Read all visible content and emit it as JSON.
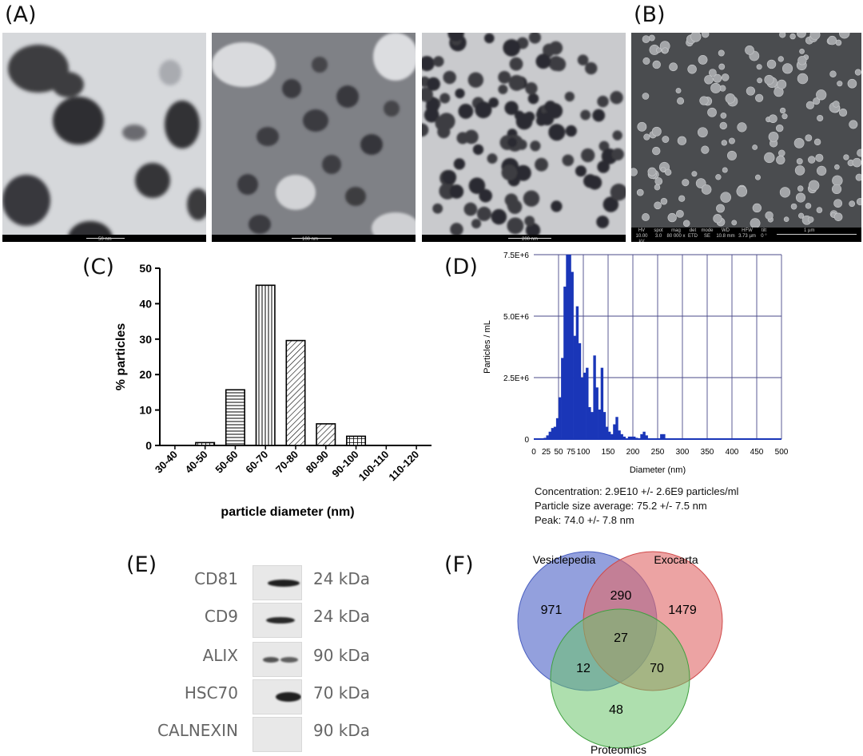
{
  "panels": {
    "A": {
      "letter": "(A)",
      "tem": [
        {
          "scale_label": "50 nm"
        },
        {
          "scale_label": "100 nm"
        },
        {
          "scale_label": "200 nm"
        }
      ]
    },
    "B": {
      "letter": "(B)",
      "sem_info": {
        "headers": [
          "HV",
          "spot",
          "mag",
          "det",
          "mode",
          "WD",
          "HFW",
          "tilt"
        ],
        "values": [
          "10.00 kV",
          "3.0",
          "80 000 x",
          "ETD",
          "SE",
          "10.8 mm",
          "3.73 µm",
          "0 °"
        ],
        "scale_label": "1 µm"
      }
    },
    "C": {
      "letter": "(C)"
    },
    "D": {
      "letter": "(D)",
      "stats": [
        "Concentration: 2.9E10 +/- 2.6E9 particles/ml",
        "Particle size average: 75.2 +/- 7.5 nm",
        "Peak: 74.0 +/- 7.8 nm"
      ]
    },
    "E": {
      "letter": "(E)",
      "blots": [
        {
          "protein": "CD81",
          "kda": "24 kDa"
        },
        {
          "protein": "CD9",
          "kda": "24 kDa"
        },
        {
          "protein": "ALIX",
          "kda": "90 kDa"
        },
        {
          "protein": "HSC70",
          "kda": "70 kDa"
        },
        {
          "protein": "CALNEXIN",
          "kda": "90 kDa"
        }
      ]
    },
    "F": {
      "letter": "(F)",
      "sets": {
        "a": "Vesiclepedia",
        "b": "Exocarta",
        "c": "Proteomics"
      },
      "colors": {
        "a": "#6a7bd0",
        "b": "#e06a6a",
        "c": "#6cc46c"
      },
      "counts": {
        "a_only": "971",
        "ab": "290",
        "b_only": "1479",
        "abc": "27",
        "ac": "12",
        "bc": "70",
        "c_only": "48"
      }
    }
  },
  "chart_data": [
    {
      "type": "bar",
      "panel": "C",
      "categories": [
        "30-40",
        "40-50",
        "50-60",
        "60-70",
        "70-80",
        "80-90",
        "90-100",
        "100-110",
        "110-120"
      ],
      "values": [
        0,
        0.8,
        15.7,
        45.2,
        29.6,
        6.1,
        2.6,
        0,
        0
      ],
      "patterns": [
        "none",
        "cross",
        "horizontal",
        "vertical",
        "diagonal",
        "diagonal",
        "cross",
        "none",
        "none"
      ],
      "xlabel": "particle diameter (nm)",
      "ylabel": "% particles",
      "ylim": [
        0,
        50
      ],
      "yticks": [
        0,
        10,
        20,
        30,
        40,
        50
      ]
    },
    {
      "type": "bar",
      "panel": "D",
      "bar_color": "#1a36b8",
      "bin_width": 5,
      "x": [
        20,
        25,
        30,
        35,
        40,
        45,
        50,
        55,
        60,
        65,
        70,
        75,
        80,
        85,
        90,
        95,
        100,
        105,
        110,
        115,
        120,
        125,
        130,
        135,
        140,
        145,
        150,
        155,
        160,
        165,
        170,
        175,
        180,
        185,
        190,
        195,
        200,
        205,
        210,
        215,
        220,
        225,
        230,
        235,
        240,
        245,
        250,
        255,
        260,
        265,
        270
      ],
      "values": [
        0.05,
        0.15,
        0.3,
        0.45,
        0.5,
        0.85,
        1.7,
        3.3,
        6.2,
        7.5,
        7.5,
        6.8,
        4.2,
        5.4,
        3.9,
        2.5,
        2.7,
        2.9,
        1.3,
        1.1,
        3.4,
        2.1,
        1.2,
        2.9,
        1.1,
        0.5,
        0.3,
        0.2,
        0.6,
        0.9,
        0.35,
        0.2,
        0.1,
        0,
        0.1,
        0.1,
        0.1,
        0.05,
        0,
        0.2,
        0.3,
        0.15,
        0,
        0,
        0,
        0,
        0,
        0.2,
        0.2,
        0,
        0
      ],
      "xlabel": "Diameter (nm)",
      "ylabel": "Particles / mL",
      "xlim": [
        0,
        500
      ],
      "ylim": [
        0,
        7500000
      ],
      "xticks": [
        0,
        25,
        50,
        75,
        100,
        150,
        200,
        250,
        300,
        350,
        400,
        450,
        500
      ],
      "ytick_labels": [
        "0",
        "2.5E+6",
        "5.0E+6",
        "7.5E+6"
      ],
      "grid": true
    }
  ]
}
